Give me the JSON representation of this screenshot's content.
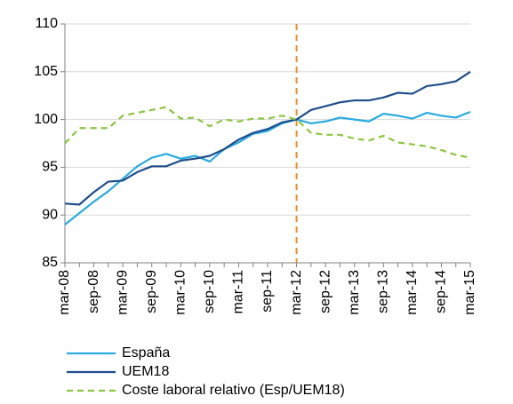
{
  "chart_data": {
    "type": "line",
    "categories": [
      "mar-08",
      null,
      "sep-08",
      null,
      "mar-09",
      null,
      "sep-09",
      null,
      "mar-10",
      null,
      "sep-10",
      null,
      "mar-11",
      null,
      "sep-11",
      null,
      "mar-12",
      null,
      "sep-12",
      null,
      "mar-13",
      null,
      "sep-13",
      null,
      "mar-14",
      null,
      "sep-14",
      null,
      "mar-15"
    ],
    "series": [
      {
        "name": "España",
        "color": "#29abe2",
        "dashed": false,
        "values": [
          89.0,
          90.2,
          91.4,
          92.5,
          93.8,
          95.1,
          96.0,
          96.4,
          95.9,
          96.2,
          95.6,
          96.9,
          97.6,
          98.5,
          98.8,
          99.6,
          100,
          99.6,
          99.8,
          100.2,
          100.0,
          99.8,
          100.6,
          100.4,
          100.1,
          100.7,
          100.4,
          100.2,
          100.8
        ]
      },
      {
        "name": "UEM18",
        "color": "#1f4e8c",
        "dashed": false,
        "values": [
          91.2,
          91.1,
          92.4,
          93.5,
          93.6,
          94.5,
          95.1,
          95.1,
          95.7,
          95.9,
          96.2,
          96.9,
          97.9,
          98.6,
          99.0,
          99.7,
          100,
          101.0,
          101.4,
          101.8,
          102.0,
          102.0,
          102.3,
          102.8,
          102.7,
          103.5,
          103.7,
          104.0,
          105.0
        ]
      },
      {
        "name": "Coste laboral relativo (Esp/UEM18)",
        "color": "#8cc63f",
        "dashed": true,
        "values": [
          97.5,
          99.1,
          99.1,
          99.1,
          100.4,
          100.7,
          101.0,
          101.3,
          100.1,
          100.2,
          99.3,
          100.0,
          99.8,
          100.1,
          100.1,
          100.4,
          100,
          98.6,
          98.4,
          98.4,
          98.0,
          97.8,
          98.3,
          97.6,
          97.4,
          97.2,
          96.8,
          96.3,
          96.0
        ]
      }
    ],
    "ylim": [
      85,
      110
    ],
    "yticks": [
      85,
      90,
      95,
      100,
      105,
      110
    ],
    "grid": true,
    "vline": {
      "x": "mar-12",
      "color": "#f28c28"
    },
    "legend": "bottom"
  }
}
